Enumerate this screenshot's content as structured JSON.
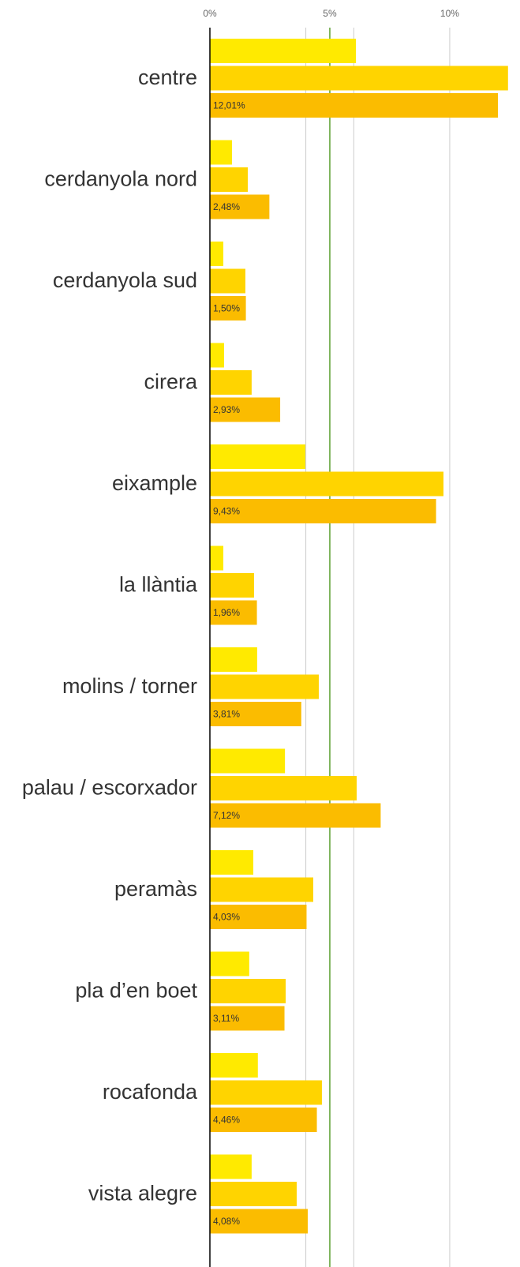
{
  "chart_data": {
    "type": "bar",
    "orientation": "horizontal",
    "categories": [
      "centre",
      "cerdanyola nord",
      "cerdanyola sud",
      "cirera",
      "eixample",
      "la llàntia",
      "molins / torner",
      "palau / escorxador",
      "peramàs",
      "pla d’en boet",
      "rocafonda",
      "vista alegre"
    ],
    "series": [
      {
        "color": "#ffea00",
        "values": [
          6.09,
          0.92,
          0.56,
          0.59,
          3.98,
          0.56,
          1.97,
          3.13,
          1.81,
          1.64,
          2.0,
          1.74
        ]
      },
      {
        "color": "#ffd400",
        "values": [
          12.43,
          1.58,
          1.48,
          1.74,
          9.74,
          1.84,
          4.54,
          6.12,
          4.31,
          3.16,
          4.67,
          3.62
        ]
      },
      {
        "color": "#fbbc00",
        "values": [
          12.01,
          2.48,
          1.5,
          2.93,
          9.43,
          1.96,
          3.81,
          7.12,
          4.03,
          3.11,
          4.46,
          4.08
        ],
        "value_labels": [
          "12,01%",
          "2,48%",
          "1,50%",
          "2,93%",
          "9,43%",
          "1,96%",
          "3,81%",
          "7,12%",
          "4,03%",
          "3,11%",
          "4,46%",
          "4,08%"
        ]
      }
    ],
    "xlim": [
      0,
      12.93
    ],
    "xticks": [
      {
        "value": 0,
        "label": "0%"
      },
      {
        "value": 5,
        "label": "5%"
      },
      {
        "value": 10,
        "label": "10%"
      }
    ],
    "xgrid": [
      4,
      6,
      10
    ],
    "reference_line": {
      "value": 5,
      "color": "#5a9e2f"
    },
    "grid": true
  }
}
